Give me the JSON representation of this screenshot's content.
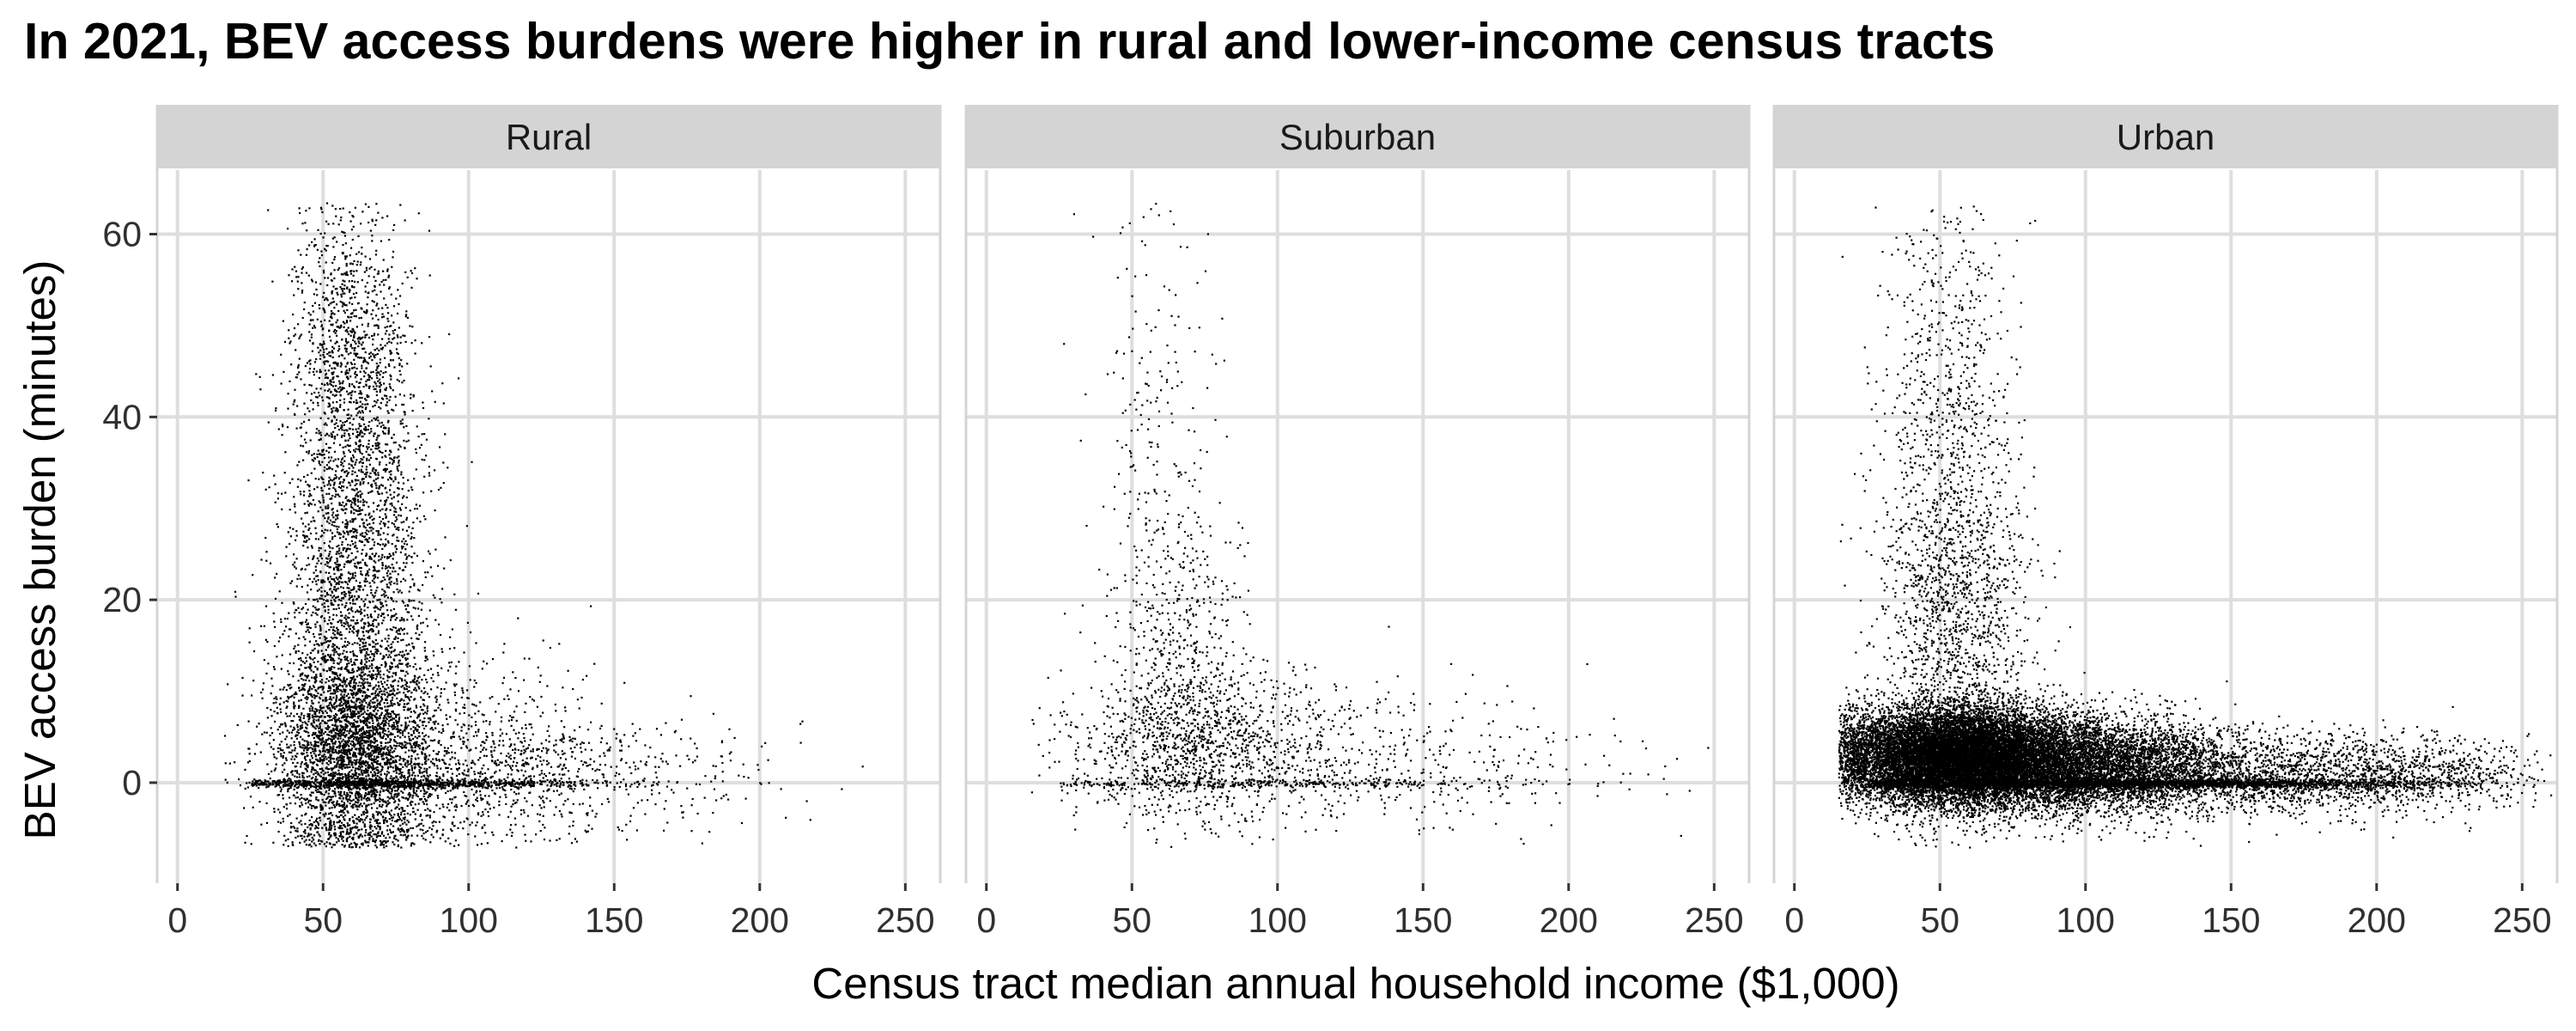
{
  "chart_data": {
    "type": "scatter",
    "title": "In 2021, BEV access burdens were higher in rural and lower-income census tracts",
    "xlabel": "Census tract median annual household income ($1,000)",
    "ylabel": "BEV access burden (minutes)",
    "xlim": [
      -7,
      262
    ],
    "ylim": [
      -11,
      67
    ],
    "x_ticks": [
      0,
      50,
      100,
      150,
      200,
      250
    ],
    "y_ticks": [
      0,
      20,
      40,
      60
    ],
    "grid": true,
    "colors": {
      "point": "#000000",
      "strip_fill": "#d4d4d4",
      "grid": "#dedede",
      "panel_border": "#d4d4d4"
    },
    "panels": [
      {
        "facet": "Rural",
        "n_points": 9000,
        "clusters": [
          {
            "weight": 0.35,
            "x_mean": 60,
            "x_sd": 14,
            "y_mean": 4,
            "y_sd": 6
          },
          {
            "weight": 0.35,
            "x_mean": 62,
            "x_sd": 12,
            "y_mean": 22,
            "y_sd": 14
          },
          {
            "weight": 0.12,
            "x_mean": 58,
            "x_sd": 10,
            "y_mean": 48,
            "y_sd": 9
          },
          {
            "weight": 0.1,
            "x_mean": 92,
            "x_sd": 25,
            "y_mean": 3,
            "y_sd": 6
          },
          {
            "weight": 0.08,
            "x_mean": 125,
            "x_sd": 38,
            "y_mean": 1,
            "y_sd": 3
          }
        ],
        "zero_line": {
          "weight": 0.12,
          "x_mean": 75,
          "x_sd": 30
        }
      },
      {
        "facet": "Suburban",
        "n_points": 2600,
        "clusters": [
          {
            "weight": 0.45,
            "x_mean": 72,
            "x_sd": 22,
            "y_mean": 4,
            "y_sd": 4
          },
          {
            "weight": 0.22,
            "x_mean": 65,
            "x_sd": 12,
            "y_mean": 14,
            "y_sd": 8
          },
          {
            "weight": 0.1,
            "x_mean": 58,
            "x_sd": 10,
            "y_mean": 38,
            "y_sd": 14
          },
          {
            "weight": 0.18,
            "x_mean": 115,
            "x_sd": 38,
            "y_mean": 3,
            "y_sd": 4
          },
          {
            "weight": 0.05,
            "x_mean": 175,
            "x_sd": 35,
            "y_mean": 2,
            "y_sd": 3
          }
        ],
        "zero_line": {
          "weight": 0.15,
          "x_mean": 95,
          "x_sd": 45
        }
      },
      {
        "facet": "Urban",
        "n_points": 26000,
        "clusters": [
          {
            "weight": 0.55,
            "x_mean": 55,
            "x_sd": 20,
            "y_mean": 3,
            "y_sd": 2.6
          },
          {
            "weight": 0.25,
            "x_mean": 95,
            "x_sd": 28,
            "y_mean": 2,
            "y_sd": 2.6
          },
          {
            "weight": 0.08,
            "x_mean": 150,
            "x_sd": 42,
            "y_mean": 1,
            "y_sd": 2.2
          },
          {
            "weight": 0.06,
            "x_mean": 55,
            "x_sd": 13,
            "y_mean": 18,
            "y_sd": 10
          },
          {
            "weight": 0.03,
            "x_mean": 52,
            "x_sd": 11,
            "y_mean": 42,
            "y_sd": 12
          },
          {
            "weight": 0.03,
            "x_mean": 210,
            "x_sd": 25,
            "y_mean": 1,
            "y_sd": 2
          }
        ],
        "zero_line": {
          "weight": 0.12,
          "x_mean": 110,
          "x_sd": 55
        }
      }
    ]
  }
}
